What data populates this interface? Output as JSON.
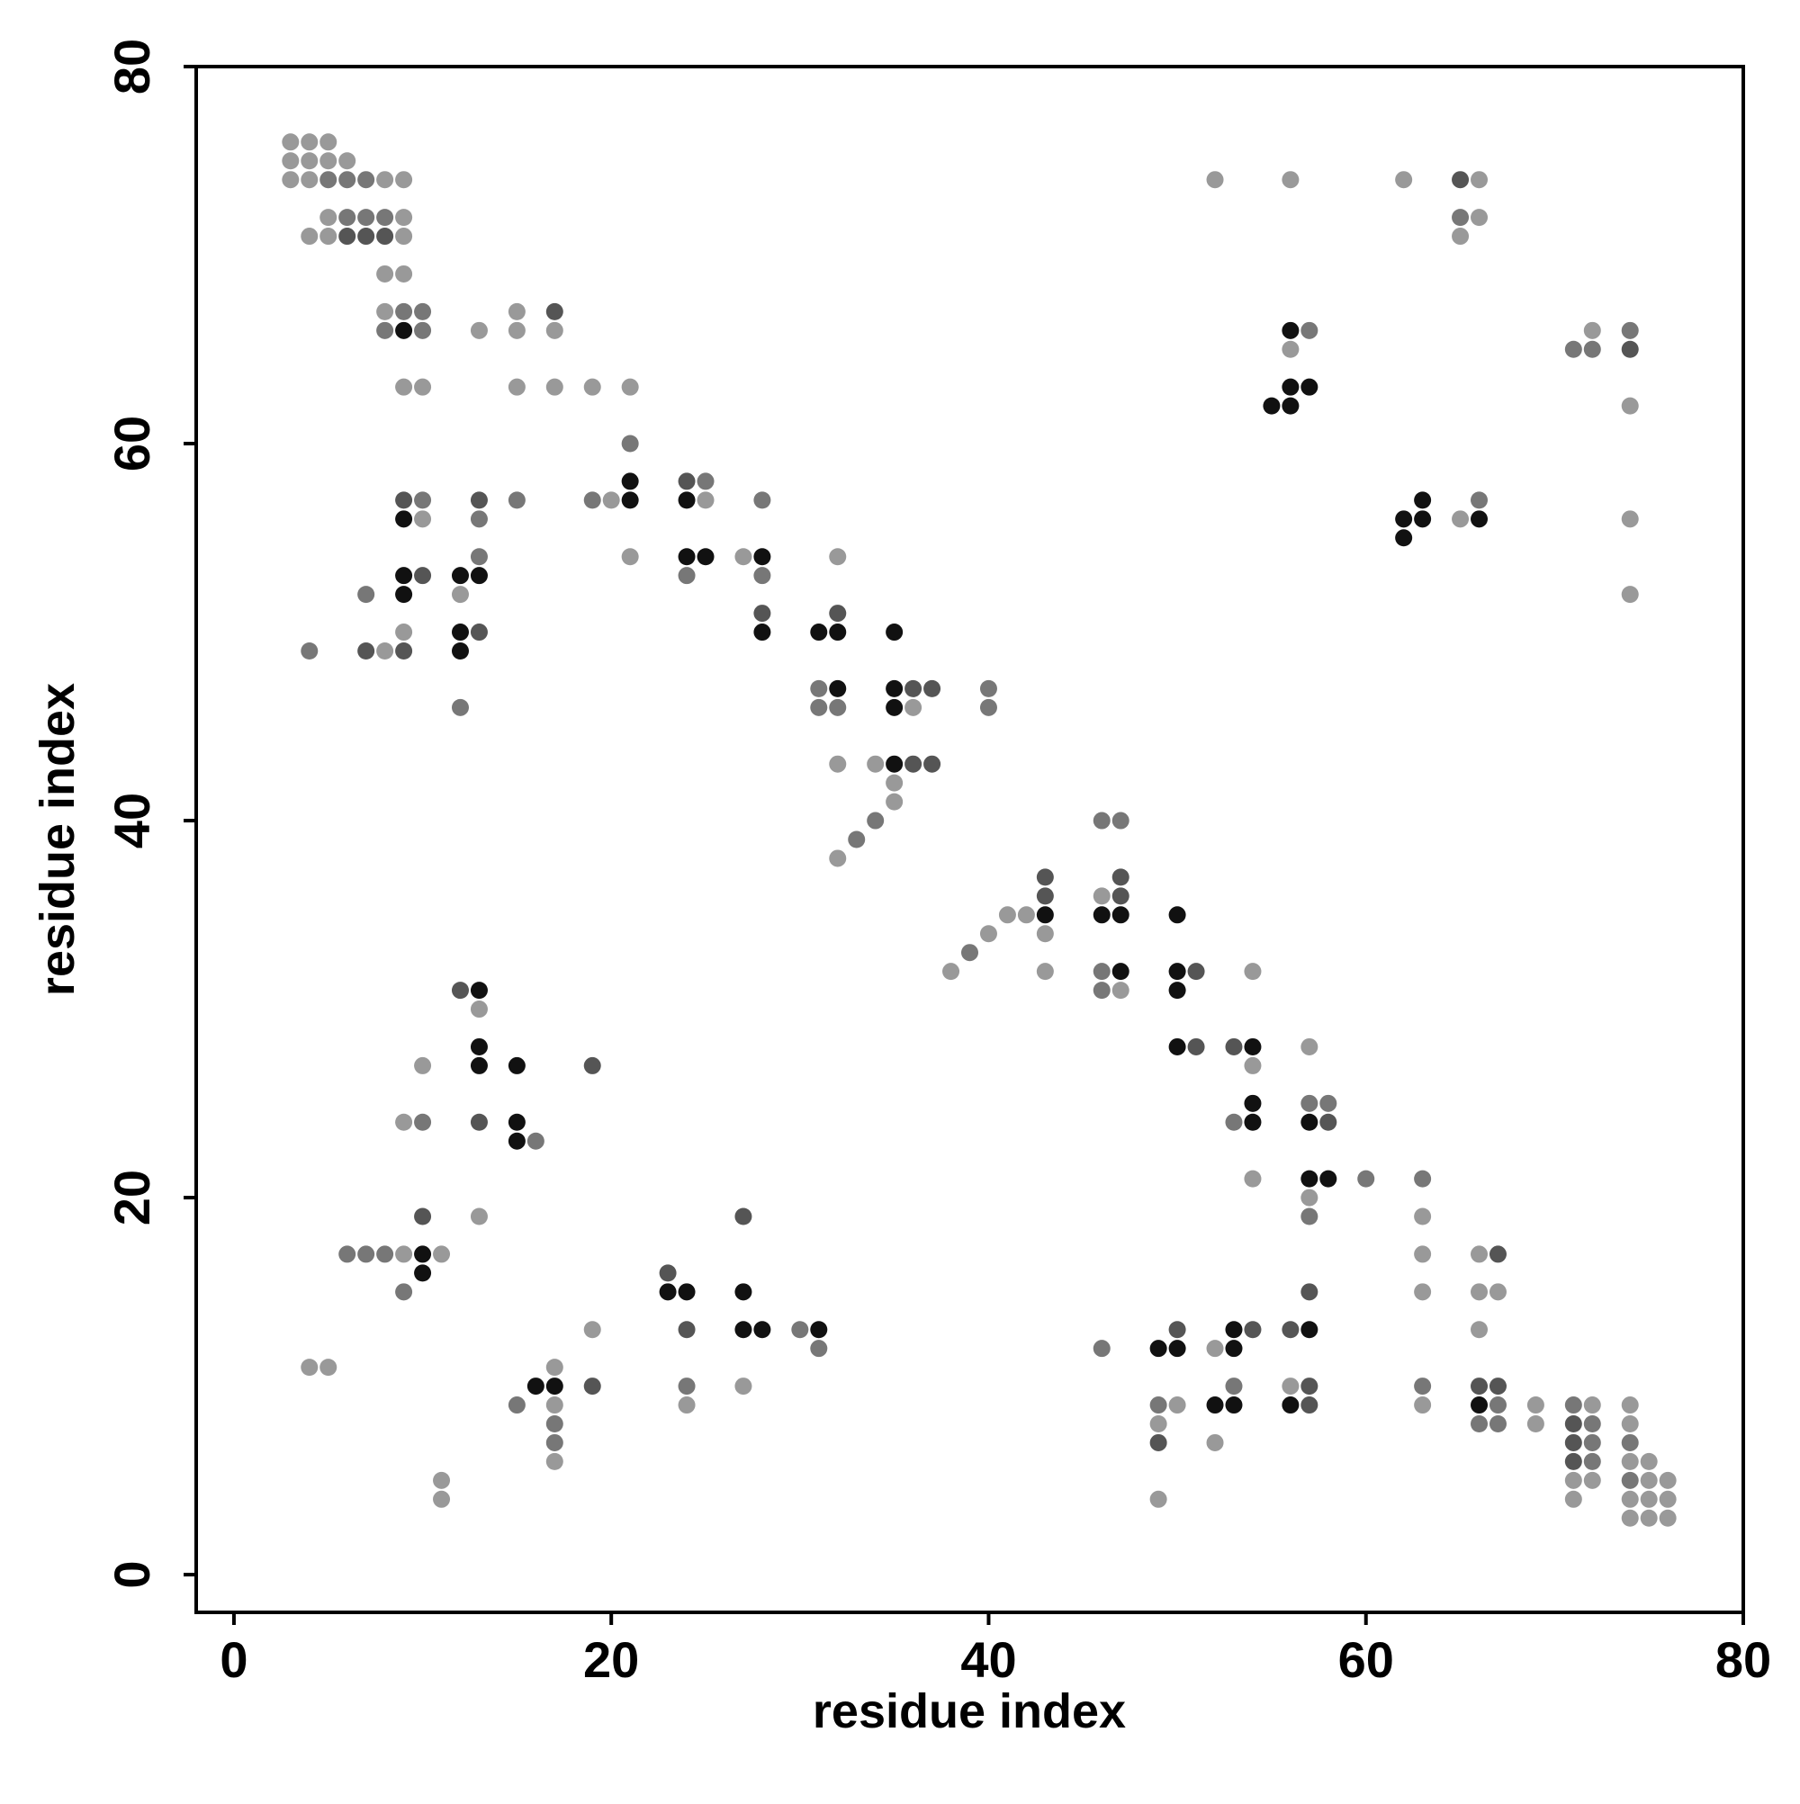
{
  "chart_data": {
    "type": "scatter",
    "x_label": "residue index",
    "y_label": "residue index",
    "xlim": [
      -2,
      80
    ],
    "ylim": [
      -2,
      80
    ],
    "xticks": [
      0,
      20,
      40,
      60,
      80
    ],
    "yticks": [
      0,
      20,
      40,
      60,
      80
    ],
    "x": [
      3,
      4,
      5,
      3,
      4,
      5,
      6,
      3,
      4,
      5,
      6,
      7,
      8,
      9,
      52,
      56,
      62,
      65,
      66,
      5,
      6,
      7,
      8,
      9,
      65,
      66,
      4,
      5,
      6,
      7,
      8,
      9,
      65,
      8,
      9,
      8,
      9,
      10,
      15,
      17,
      8,
      9,
      10,
      13,
      15,
      17,
      56,
      57,
      72,
      74,
      56,
      71,
      72,
      74,
      9,
      10,
      15,
      17,
      19,
      21,
      56,
      57,
      55,
      56,
      74,
      21,
      21,
      24,
      25,
      9,
      10,
      13,
      15,
      19,
      20,
      21,
      24,
      25,
      28,
      63,
      66,
      9,
      10,
      13,
      62,
      63,
      65,
      66,
      74,
      62,
      13,
      21,
      24,
      25,
      27,
      28,
      32,
      9,
      10,
      12,
      13,
      24,
      28,
      7,
      9,
      12,
      74,
      28,
      32,
      9,
      12,
      13,
      28,
      31,
      32,
      35,
      4,
      7,
      8,
      9,
      12,
      31,
      32,
      35,
      36,
      37,
      40,
      12,
      31,
      32,
      35,
      36,
      40,
      32,
      34,
      35,
      36,
      37,
      35,
      35,
      34,
      46,
      47,
      33,
      32,
      43,
      47,
      43,
      46,
      47,
      41,
      42,
      43,
      46,
      47,
      50,
      40,
      43,
      39,
      38,
      43,
      46,
      47,
      50,
      51,
      54,
      12,
      13,
      46,
      47,
      50,
      13,
      13,
      50,
      51,
      53,
      54,
      57,
      10,
      13,
      15,
      19,
      54,
      54,
      57,
      58,
      9,
      10,
      13,
      15,
      53,
      54,
      57,
      58,
      15,
      16,
      54,
      57,
      58,
      60,
      63,
      57,
      10,
      13,
      27,
      57,
      63,
      6,
      7,
      8,
      9,
      10,
      11,
      63,
      66,
      67,
      10,
      23,
      9,
      23,
      24,
      27,
      57,
      63,
      66,
      67,
      19,
      24,
      27,
      28,
      30,
      31,
      50,
      53,
      54,
      56,
      57,
      66,
      31,
      46,
      49,
      50,
      52,
      53,
      4,
      5,
      17,
      16,
      17,
      19,
      24,
      27,
      53,
      56,
      57,
      63,
      66,
      67,
      15,
      17,
      24,
      49,
      50,
      52,
      53,
      56,
      57,
      63,
      66,
      67,
      69,
      71,
      72,
      74,
      17,
      49,
      66,
      67,
      69,
      71,
      72,
      74,
      17,
      49,
      52,
      71,
      72,
      74,
      17,
      71,
      72,
      74,
      75,
      11,
      71,
      72,
      74,
      75,
      76,
      11,
      49,
      71,
      74,
      75,
      76,
      74,
      75,
      76
    ],
    "values": [
      76,
      76,
      76,
      75,
      75,
      75,
      75,
      74,
      74,
      74,
      74,
      74,
      74,
      74,
      74,
      74,
      74,
      74,
      74,
      72,
      72,
      72,
      72,
      72,
      72,
      72,
      71,
      71,
      71,
      71,
      71,
      71,
      71,
      69,
      69,
      67,
      67,
      67,
      67,
      67,
      66,
      66,
      66,
      66,
      66,
      66,
      66,
      66,
      66,
      66,
      65,
      65,
      65,
      65,
      63,
      63,
      63,
      63,
      63,
      63,
      63,
      63,
      62,
      62,
      62,
      60,
      58,
      58,
      58,
      57,
      57,
      57,
      57,
      57,
      57,
      57,
      57,
      57,
      57,
      57,
      57,
      56,
      56,
      56,
      56,
      56,
      56,
      56,
      56,
      55,
      54,
      54,
      54,
      54,
      54,
      54,
      54,
      53,
      53,
      53,
      53,
      53,
      53,
      52,
      52,
      52,
      52,
      51,
      51,
      50,
      50,
      50,
      50,
      50,
      50,
      50,
      49,
      49,
      49,
      49,
      49,
      47,
      47,
      47,
      47,
      47,
      47,
      46,
      46,
      46,
      46,
      46,
      46,
      43,
      43,
      43,
      43,
      43,
      42,
      41,
      40,
      40,
      40,
      39,
      38,
      37,
      37,
      36,
      36,
      36,
      35,
      35,
      35,
      35,
      35,
      35,
      34,
      34,
      33,
      32,
      32,
      32,
      32,
      32,
      32,
      32,
      31,
      31,
      31,
      31,
      31,
      30,
      28,
      28,
      28,
      28,
      28,
      28,
      27,
      27,
      27,
      27,
      27,
      25,
      25,
      25,
      24,
      24,
      24,
      24,
      24,
      24,
      24,
      24,
      23,
      23,
      21,
      21,
      21,
      21,
      21,
      20,
      19,
      19,
      19,
      19,
      19,
      17,
      17,
      17,
      17,
      17,
      17,
      17,
      17,
      17,
      16,
      16,
      15,
      15,
      15,
      15,
      15,
      15,
      15,
      15,
      13,
      13,
      13,
      13,
      13,
      13,
      13,
      13,
      13,
      13,
      13,
      13,
      12,
      12,
      12,
      12,
      12,
      12,
      11,
      11,
      11,
      10,
      10,
      10,
      10,
      10,
      10,
      10,
      10,
      10,
      10,
      10,
      9,
      9,
      9,
      9,
      9,
      9,
      9,
      9,
      9,
      9,
      9,
      9,
      9,
      9,
      9,
      9,
      8,
      8,
      8,
      8,
      8,
      8,
      8,
      8,
      7,
      7,
      7,
      7,
      7,
      7,
      6,
      6,
      6,
      6,
      6,
      5,
      5,
      5,
      5,
      5,
      5,
      4,
      4,
      4,
      4,
      4,
      4,
      3,
      3,
      3
    ],
    "colors": [
      "#999",
      "#999",
      "#999",
      "#999",
      "#999",
      "#999",
      "#999",
      "#999",
      "#999",
      "#777",
      "#777",
      "#777",
      "#999",
      "#999",
      "#999",
      "#999",
      "#999",
      "#555",
      "#999",
      "#999",
      "#777",
      "#777",
      "#777",
      "#999",
      "#777",
      "#999",
      "#999",
      "#999",
      "#555",
      "#555",
      "#555",
      "#999",
      "#999",
      "#999",
      "#999",
      "#999",
      "#777",
      "#777",
      "#999",
      "#555",
      "#777",
      "#111",
      "#777",
      "#999",
      "#999",
      "#999",
      "#111",
      "#777",
      "#999",
      "#777",
      "#999",
      "#777",
      "#777",
      "#555",
      "#999",
      "#999",
      "#999",
      "#999",
      "#999",
      "#999",
      "#111",
      "#111",
      "#111",
      "#111",
      "#999",
      "#777",
      "#111",
      "#555",
      "#777",
      "#555",
      "#777",
      "#555",
      "#777",
      "#777",
      "#999",
      "#111",
      "#111",
      "#999",
      "#777",
      "#111",
      "#777",
      "#111",
      "#999",
      "#777",
      "#111",
      "#111",
      "#999",
      "#111",
      "#999",
      "#111",
      "#777",
      "#999",
      "#111",
      "#111",
      "#999",
      "#111",
      "#999",
      "#111",
      "#555",
      "#111",
      "#111",
      "#777",
      "#777",
      "#777",
      "#111",
      "#999",
      "#999",
      "#555",
      "#555",
      "#999",
      "#111",
      "#555",
      "#111",
      "#111",
      "#111",
      "#111",
      "#777",
      "#555",
      "#999",
      "#555",
      "#111",
      "#777",
      "#111",
      "#111",
      "#555",
      "#555",
      "#777",
      "#777",
      "#777",
      "#777",
      "#111",
      "#999",
      "#777",
      "#999",
      "#999",
      "#111",
      "#555",
      "#555",
      "#999",
      "#999",
      "#777",
      "#777",
      "#777",
      "#777",
      "#999",
      "#555",
      "#555",
      "#555",
      "#999",
      "#555",
      "#999",
      "#999",
      "#111",
      "#111",
      "#111",
      "#111",
      "#999",
      "#999",
      "#777",
      "#999",
      "#999",
      "#777",
      "#111",
      "#111",
      "#555",
      "#999",
      "#555",
      "#111",
      "#777",
      "#999",
      "#111",
      "#999",
      "#111",
      "#111",
      "#555",
      "#555",
      "#111",
      "#999",
      "#999",
      "#111",
      "#111",
      "#555",
      "#999",
      "#111",
      "#777",
      "#777",
      "#999",
      "#777",
      "#555",
      "#111",
      "#777",
      "#111",
      "#111",
      "#555",
      "#111",
      "#777",
      "#999",
      "#111",
      "#111",
      "#777",
      "#777",
      "#999",
      "#555",
      "#999",
      "#555",
      "#777",
      "#999",
      "#777",
      "#777",
      "#777",
      "#999",
      "#111",
      "#999",
      "#999",
      "#999",
      "#555",
      "#111",
      "#555",
      "#777",
      "#111",
      "#111",
      "#111",
      "#555",
      "#999",
      "#999",
      "#999",
      "#999",
      "#555",
      "#111",
      "#111",
      "#777",
      "#111",
      "#555",
      "#111",
      "#555",
      "#555",
      "#111",
      "#999",
      "#777",
      "#777",
      "#111",
      "#111",
      "#999",
      "#111",
      "#999",
      "#999",
      "#999",
      "#111",
      "#111",
      "#555",
      "#777",
      "#999",
      "#777",
      "#999",
      "#555",
      "#777",
      "#555",
      "#555",
      "#777",
      "#999",
      "#999",
      "#777",
      "#999",
      "#111",
      "#111",
      "#111",
      "#555",
      "#999",
      "#111",
      "#777",
      "#999",
      "#777",
      "#999",
      "#999",
      "#777",
      "#999",
      "#777",
      "#777",
      "#999",
      "#555",
      "#777",
      "#999",
      "#777",
      "#555",
      "#999",
      "#555",
      "#777",
      "#777",
      "#999",
      "#555",
      "#777",
      "#999",
      "#999",
      "#999",
      "#999",
      "#999",
      "#777",
      "#999",
      "#999",
      "#999",
      "#999",
      "#999",
      "#999",
      "#999",
      "#999",
      "#999",
      "#999",
      "#999"
    ]
  }
}
